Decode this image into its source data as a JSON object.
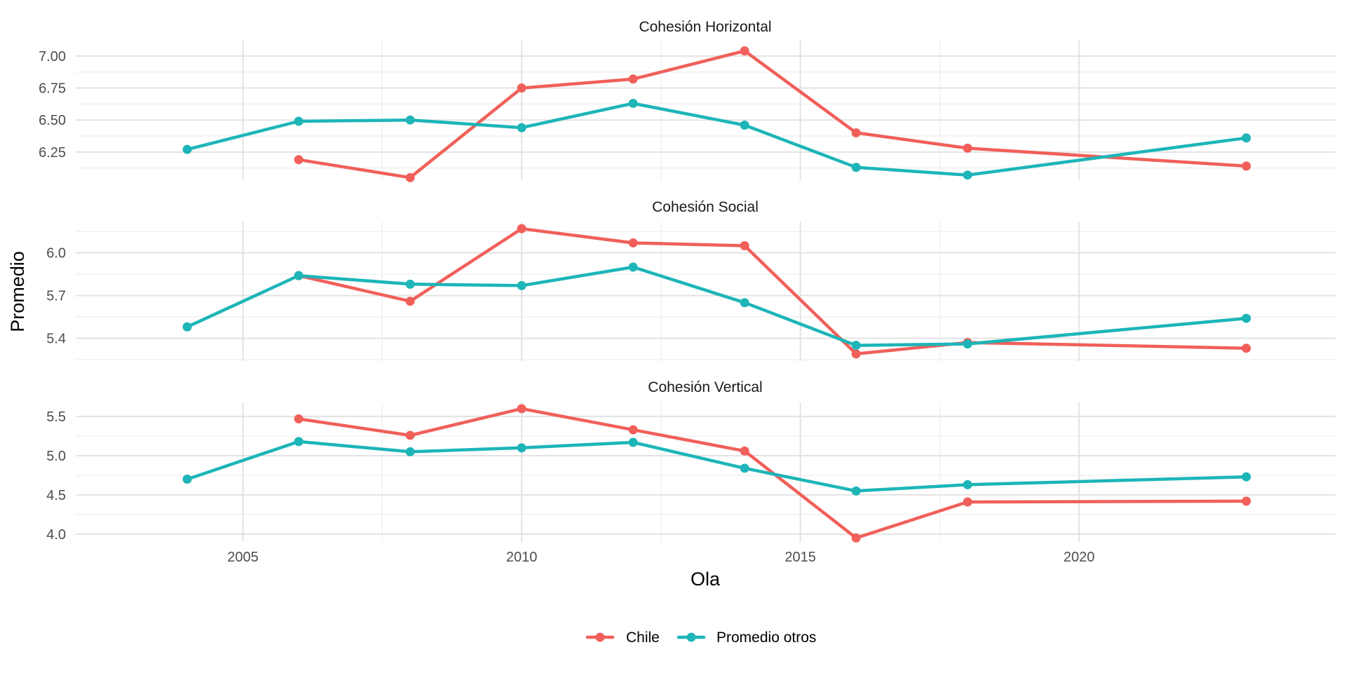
{
  "chart_data": {
    "type": "line",
    "xlabel": "Ola",
    "ylabel": "Promedio",
    "xlim": [
      2002,
      2024.6
    ],
    "x_ticks": [
      2005,
      2010,
      2015,
      2020
    ],
    "x_tick_labels": [
      "2005",
      "2010",
      "2015",
      "2020"
    ],
    "grid": true,
    "legend_position": "bottom",
    "legend": [
      {
        "name": "Chile",
        "color": "#f15f5a"
      },
      {
        "name": "Promedio otros",
        "color": "#1db5b8"
      }
    ],
    "panels": [
      {
        "title": "Cohesión Horizontal",
        "ylim": [
          6.03,
          7.12
        ],
        "y_ticks": [
          6.25,
          6.5,
          6.75,
          7.0
        ],
        "y_tick_labels": [
          "6.25",
          "6.50",
          "6.75",
          "7.00"
        ],
        "series": [
          {
            "name": "Chile",
            "x": [
              2006,
              2008,
              2010,
              2012,
              2014,
              2016,
              2018,
              2023
            ],
            "y": [
              6.19,
              6.05,
              6.75,
              6.82,
              7.04,
              6.4,
              6.28,
              6.14
            ]
          },
          {
            "name": "Promedio otros",
            "x": [
              2004,
              2006,
              2008,
              2010,
              2012,
              2014,
              2016,
              2018,
              2023
            ],
            "y": [
              6.27,
              6.49,
              6.5,
              6.44,
              6.63,
              6.46,
              6.13,
              6.07,
              6.36
            ]
          }
        ]
      },
      {
        "title": "Cohesión Social",
        "ylim": [
          5.24,
          6.22
        ],
        "y_ticks": [
          5.4,
          5.7,
          6.0
        ],
        "y_tick_labels": [
          "5.4",
          "5.7",
          "6.0"
        ],
        "series": [
          {
            "name": "Chile",
            "x": [
              2006,
              2008,
              2010,
              2012,
              2014,
              2016,
              2018,
              2023
            ],
            "y": [
              5.84,
              5.66,
              6.17,
              6.07,
              6.05,
              5.29,
              5.37,
              5.33
            ]
          },
          {
            "name": "Promedio otros",
            "x": [
              2004,
              2006,
              2008,
              2010,
              2012,
              2014,
              2016,
              2018,
              2023
            ],
            "y": [
              5.48,
              5.84,
              5.78,
              5.77,
              5.9,
              5.65,
              5.35,
              5.36,
              5.54
            ]
          }
        ]
      },
      {
        "title": "Cohesión Vertical",
        "ylim": [
          3.9,
          5.68
        ],
        "y_ticks": [
          4.0,
          4.5,
          5.0,
          5.5
        ],
        "y_tick_labels": [
          "4.0",
          "4.5",
          "5.0",
          "5.5"
        ],
        "series": [
          {
            "name": "Chile",
            "x": [
              2006,
              2008,
              2010,
              2012,
              2014,
              2016,
              2018,
              2023
            ],
            "y": [
              5.47,
              5.26,
              5.6,
              5.33,
              5.06,
              3.95,
              4.41,
              4.42
            ]
          },
          {
            "name": "Promedio otros",
            "x": [
              2004,
              2006,
              2008,
              2010,
              2012,
              2014,
              2016,
              2018,
              2023
            ],
            "y": [
              4.7,
              5.18,
              5.05,
              5.1,
              5.17,
              4.84,
              4.55,
              4.63,
              4.73
            ]
          }
        ]
      }
    ]
  }
}
